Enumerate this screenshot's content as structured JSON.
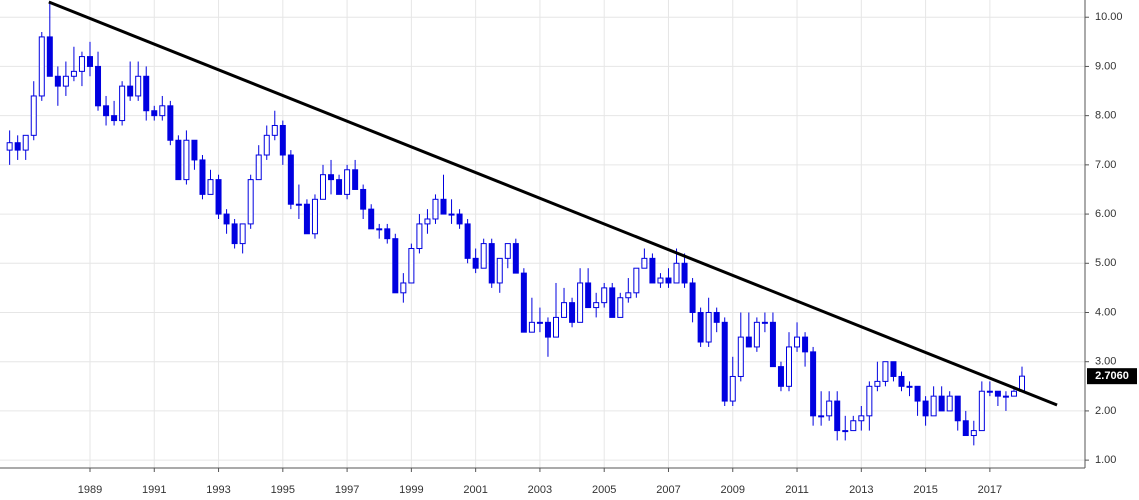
{
  "chart_data": {
    "type": "candlestick",
    "x": [
      1986.5,
      1986.75,
      1987,
      1987.25,
      1987.5,
      1987.75,
      1988,
      1988.25,
      1988.5,
      1988.75,
      1989,
      1989.25,
      1989.5,
      1989.75,
      1990,
      1990.25,
      1990.5,
      1990.75,
      1991,
      1991.25,
      1991.5,
      1991.75,
      1992,
      1992.25,
      1992.5,
      1992.75,
      1993,
      1993.25,
      1993.5,
      1993.75,
      1994,
      1994.25,
      1994.5,
      1994.75,
      1995,
      1995.25,
      1995.5,
      1995.75,
      1996,
      1996.25,
      1996.5,
      1996.75,
      1997,
      1997.25,
      1997.5,
      1997.75,
      1998,
      1998.25,
      1998.5,
      1998.75,
      1999,
      1999.25,
      1999.5,
      1999.75,
      2000,
      2000.25,
      2000.5,
      2000.75,
      2001,
      2001.25,
      2001.5,
      2001.75,
      2002,
      2002.25,
      2002.5,
      2002.75,
      2003,
      2003.25,
      2003.5,
      2003.75,
      2004,
      2004.25,
      2004.5,
      2004.75,
      2005,
      2005.25,
      2005.5,
      2005.75,
      2006,
      2006.25,
      2006.5,
      2006.75,
      2007,
      2007.25,
      2007.5,
      2007.75,
      2008,
      2008.25,
      2008.5,
      2008.75,
      2009,
      2009.25,
      2009.5,
      2009.75,
      2010,
      2010.25,
      2010.5,
      2010.75,
      2011,
      2011.25,
      2011.5,
      2011.75,
      2012,
      2012.25,
      2012.5,
      2012.75,
      2013,
      2013.25,
      2013.5,
      2013.75,
      2014,
      2014.25,
      2014.5,
      2014.75,
      2015,
      2015.25,
      2015.5,
      2015.75,
      2016,
      2016.25,
      2016.5,
      2016.75,
      2017,
      2017.25,
      2017.5,
      2017.75,
      2018
    ],
    "open": [
      7.3,
      7.45,
      7.3,
      7.6,
      8.4,
      9.6,
      8.8,
      8.6,
      8.8,
      8.9,
      9.2,
      9.0,
      8.2,
      8.0,
      7.9,
      8.6,
      8.4,
      8.8,
      8.1,
      8.0,
      8.2,
      7.5,
      6.7,
      7.5,
      7.1,
      6.4,
      6.7,
      6.0,
      5.8,
      5.4,
      5.8,
      6.7,
      7.2,
      7.6,
      7.8,
      7.2,
      6.2,
      6.2,
      5.6,
      6.3,
      6.8,
      6.7,
      6.4,
      6.9,
      6.5,
      6.1,
      5.7,
      5.7,
      5.5,
      4.4,
      4.6,
      5.3,
      5.8,
      5.9,
      6.3,
      6.0,
      6.0,
      5.8,
      5.1,
      4.9,
      5.4,
      4.6,
      5.1,
      5.4,
      4.8,
      3.6,
      3.8,
      3.8,
      3.5,
      3.9,
      4.2,
      3.8,
      4.6,
      4.1,
      4.2,
      4.5,
      3.9,
      4.3,
      4.4,
      4.9,
      5.1,
      4.6,
      4.7,
      4.6,
      5.0,
      4.6,
      4.0,
      3.4,
      4.0,
      3.8,
      2.2,
      2.7,
      3.5,
      3.3,
      3.8,
      3.8,
      2.9,
      2.5,
      3.3,
      3.5,
      3.2,
      1.9,
      1.9,
      2.2,
      1.6,
      1.6,
      1.8,
      1.9,
      2.5,
      2.6,
      3.0,
      2.7,
      2.5,
      2.5,
      2.2,
      1.9,
      2.3,
      2.0,
      2.3,
      1.8,
      1.5,
      1.6,
      2.4,
      2.4,
      2.3,
      2.3,
      2.4
    ],
    "high": [
      7.7,
      7.6,
      7.6,
      8.7,
      9.7,
      10.3,
      9.0,
      9.1,
      9.4,
      9.3,
      9.5,
      9.3,
      8.4,
      8.3,
      8.7,
      9.1,
      9.1,
      9.0,
      8.2,
      8.4,
      8.3,
      7.6,
      7.7,
      7.5,
      7.2,
      6.9,
      6.8,
      6.1,
      5.9,
      5.8,
      6.8,
      7.4,
      7.8,
      8.1,
      7.9,
      7.3,
      6.6,
      6.3,
      6.4,
      7.0,
      7.1,
      6.8,
      7.0,
      7.1,
      6.6,
      6.2,
      5.8,
      5.8,
      5.6,
      4.8,
      5.4,
      6.0,
      6.1,
      6.4,
      6.8,
      6.3,
      6.1,
      5.9,
      5.3,
      5.5,
      5.5,
      5.1,
      5.4,
      5.5,
      4.9,
      4.3,
      4.1,
      3.9,
      4.6,
      4.5,
      4.3,
      4.9,
      4.9,
      4.4,
      4.6,
      4.6,
      4.4,
      4.7,
      4.9,
      5.3,
      5.2,
      4.8,
      4.9,
      5.3,
      5.2,
      4.7,
      4.1,
      4.3,
      4.1,
      3.9,
      3.1,
      4.0,
      4.0,
      3.9,
      4.0,
      4.0,
      3.0,
      3.6,
      3.8,
      3.6,
      3.3,
      2.4,
      2.4,
      2.4,
      1.9,
      1.9,
      2.1,
      2.6,
      3.0,
      3.0,
      3.0,
      2.8,
      2.6,
      2.5,
      2.3,
      2.5,
      2.5,
      2.4,
      2.3,
      2.0,
      1.8,
      2.6,
      2.6,
      2.4,
      2.4,
      2.5,
      2.9
    ],
    "low": [
      7.0,
      7.1,
      7.1,
      7.5,
      8.3,
      8.8,
      8.2,
      8.4,
      8.7,
      8.6,
      8.8,
      8.1,
      7.8,
      7.8,
      7.8,
      8.3,
      8.3,
      7.9,
      7.9,
      7.9,
      7.4,
      6.7,
      6.6,
      6.9,
      6.3,
      6.4,
      5.9,
      5.6,
      5.3,
      5.2,
      5.7,
      6.7,
      7.1,
      7.5,
      7.0,
      6.1,
      5.9,
      5.6,
      5.5,
      6.3,
      6.4,
      6.4,
      6.3,
      6.5,
      5.9,
      5.7,
      5.5,
      5.4,
      4.4,
      4.2,
      4.6,
      5.2,
      5.6,
      5.8,
      6.0,
      5.8,
      5.7,
      5.0,
      4.8,
      4.9,
      4.5,
      4.4,
      4.9,
      4.8,
      3.6,
      3.6,
      3.6,
      3.1,
      3.5,
      3.9,
      3.7,
      3.8,
      4.1,
      3.9,
      4.1,
      3.9,
      3.9,
      4.2,
      4.3,
      4.9,
      4.6,
      4.5,
      4.5,
      4.6,
      4.5,
      3.8,
      3.3,
      3.3,
      3.6,
      2.1,
      2.1,
      2.6,
      3.3,
      3.2,
      3.6,
      2.9,
      2.4,
      2.4,
      3.2,
      2.9,
      1.7,
      1.7,
      1.8,
      1.4,
      1.4,
      1.6,
      1.6,
      1.6,
      2.4,
      2.5,
      2.6,
      2.4,
      2.3,
      1.9,
      1.7,
      1.9,
      2.0,
      2.0,
      1.6,
      1.5,
      1.3,
      1.6,
      2.3,
      2.1,
      2.0,
      2.3,
      2.4
    ],
    "close": [
      7.45,
      7.3,
      7.6,
      8.4,
      9.6,
      8.8,
      8.6,
      8.8,
      8.9,
      9.2,
      9.0,
      8.2,
      8.0,
      7.9,
      8.6,
      8.4,
      8.8,
      8.1,
      8.0,
      8.2,
      7.5,
      6.7,
      7.5,
      7.1,
      6.4,
      6.7,
      6.0,
      5.8,
      5.4,
      5.8,
      6.7,
      7.2,
      7.6,
      7.8,
      7.2,
      6.2,
      6.2,
      5.6,
      6.3,
      6.8,
      6.7,
      6.4,
      6.9,
      6.5,
      6.1,
      5.7,
      5.7,
      5.5,
      4.4,
      4.6,
      5.3,
      5.8,
      5.9,
      6.3,
      6.0,
      6.0,
      5.8,
      5.1,
      4.9,
      5.4,
      4.6,
      5.1,
      5.4,
      4.8,
      3.6,
      3.8,
      3.8,
      3.5,
      3.9,
      4.2,
      3.8,
      4.6,
      4.1,
      4.2,
      4.5,
      3.9,
      4.3,
      4.4,
      4.9,
      5.1,
      4.6,
      4.7,
      4.6,
      5.0,
      4.6,
      4.0,
      3.4,
      4.0,
      3.8,
      2.2,
      2.7,
      3.5,
      3.3,
      3.8,
      3.8,
      2.9,
      2.5,
      3.3,
      3.5,
      3.2,
      1.9,
      1.9,
      2.2,
      1.6,
      1.6,
      1.8,
      1.9,
      2.5,
      2.6,
      3.0,
      2.7,
      2.5,
      2.5,
      2.2,
      1.9,
      2.3,
      2.0,
      2.3,
      1.8,
      1.5,
      1.6,
      2.4,
      2.4,
      2.3,
      2.3,
      2.4,
      2.706
    ],
    "up_color": "#ffffff",
    "down_color": "#0000e0",
    "edge_color": "#0000e0",
    "xlim": [
      1986.2,
      2019.96
    ],
    "xticks": [
      1989,
      1991,
      1993,
      1995,
      1997,
      1999,
      2001,
      2003,
      2005,
      2007,
      2009,
      2011,
      2013,
      2015,
      2017
    ],
    "ylim": [
      0.84,
      10.35
    ],
    "yticks": [
      {
        "value": 1,
        "label": "1.00"
      },
      {
        "value": 2,
        "label": "2.00"
      },
      {
        "value": 3,
        "label": "3.00"
      },
      {
        "value": 4,
        "label": "4.00"
      },
      {
        "value": 5,
        "label": "5.00"
      },
      {
        "value": 6,
        "label": "6.00"
      },
      {
        "value": 7,
        "label": "7.00"
      },
      {
        "value": 8,
        "label": "8.00"
      },
      {
        "value": 9,
        "label": "9.00"
      },
      {
        "value": 10,
        "label": "10.00"
      }
    ],
    "grid": true,
    "trendline": {
      "x": [
        1987.72,
        2019.09
      ],
      "y": [
        10.31,
        2.12
      ],
      "color": "#000000"
    },
    "last_price": {
      "value": 2.706,
      "label": "2.7060"
    }
  }
}
